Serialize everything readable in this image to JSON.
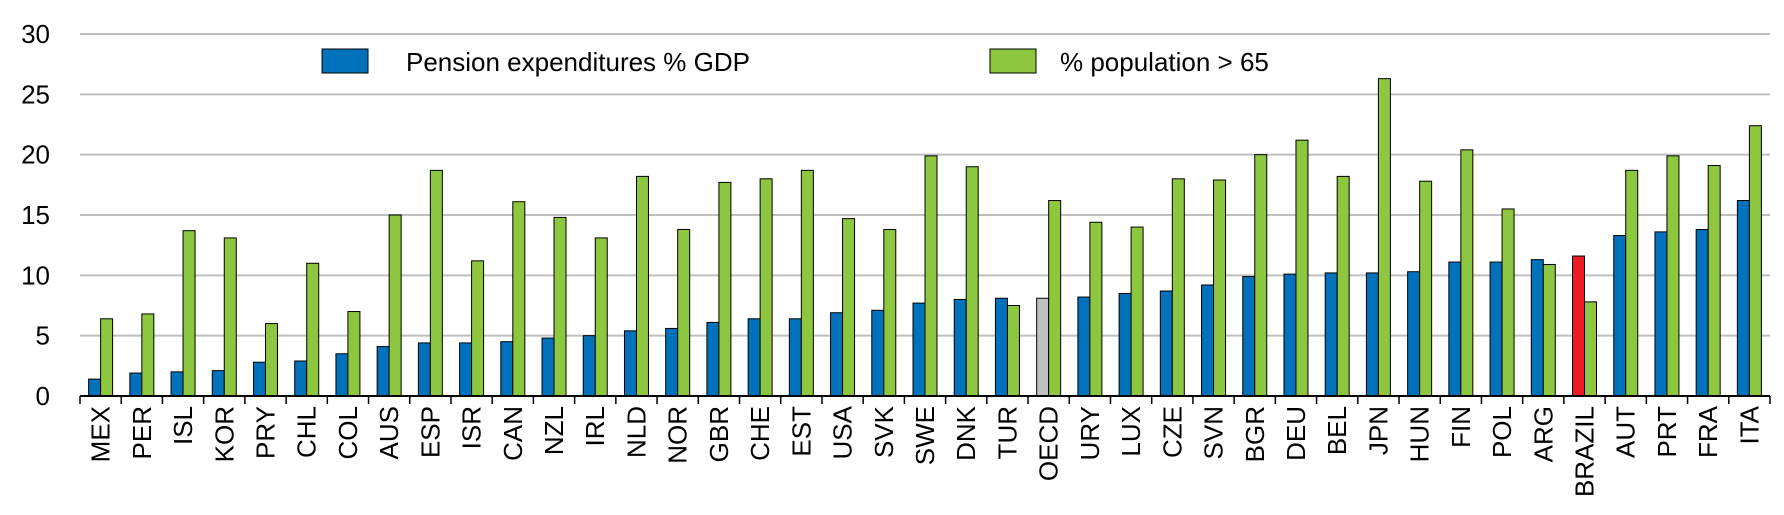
{
  "chart_data": {
    "type": "bar",
    "ylim": [
      0,
      30
    ],
    "yticks": [
      0,
      5,
      10,
      15,
      20,
      25,
      30
    ],
    "grid": true,
    "legend_position": "top",
    "categories": [
      "MEX",
      "PER",
      "ISL",
      "KOR",
      "PRY",
      "CHL",
      "COL",
      "AUS",
      "ESP",
      "ISR",
      "CAN",
      "NZL",
      "IRL",
      "NLD",
      "NOR",
      "GBR",
      "CHE",
      "EST",
      "USA",
      "SVK",
      "SWE",
      "DNK",
      "TUR",
      "OECD",
      "URY",
      "LUX",
      "CZE",
      "SVN",
      "BGR",
      "DEU",
      "BEL",
      "JPN",
      "HUN",
      "FIN",
      "POL",
      "ARG",
      "BRAZIL",
      "AUT",
      "PRT",
      "FRA",
      "ITA"
    ],
    "series": [
      {
        "name": "Pension expenditures % GDP",
        "color": "#0072bc",
        "values": [
          1.4,
          1.9,
          2.0,
          2.1,
          2.8,
          2.9,
          3.5,
          4.1,
          4.4,
          4.4,
          4.5,
          4.8,
          5.0,
          5.4,
          5.6,
          6.1,
          6.4,
          6.4,
          6.9,
          7.1,
          7.7,
          8.0,
          8.1,
          8.1,
          8.2,
          8.5,
          8.7,
          9.2,
          9.9,
          10.1,
          10.2,
          10.2,
          10.3,
          11.1,
          11.1,
          11.3,
          11.6,
          13.3,
          13.6,
          13.8,
          16.2
        ]
      },
      {
        "name": "% population > 65",
        "color": "#8dc63f",
        "values": [
          6.4,
          6.8,
          13.7,
          13.1,
          6.0,
          11.0,
          7.0,
          15.0,
          18.7,
          11.2,
          16.1,
          14.8,
          13.1,
          18.2,
          13.8,
          17.7,
          18.0,
          18.7,
          14.7,
          13.8,
          19.9,
          19.0,
          7.5,
          16.2,
          14.4,
          14.0,
          18.0,
          17.9,
          20.0,
          21.2,
          18.2,
          26.3,
          17.8,
          20.4,
          15.5,
          10.9,
          7.8,
          18.7,
          19.9,
          19.1,
          22.4
        ]
      }
    ],
    "highlight": [
      {
        "category": "OECD",
        "series": 0,
        "color": "#c0c0c0"
      },
      {
        "category": "BRAZIL",
        "series": 0,
        "color": "#ed1c24"
      }
    ]
  }
}
